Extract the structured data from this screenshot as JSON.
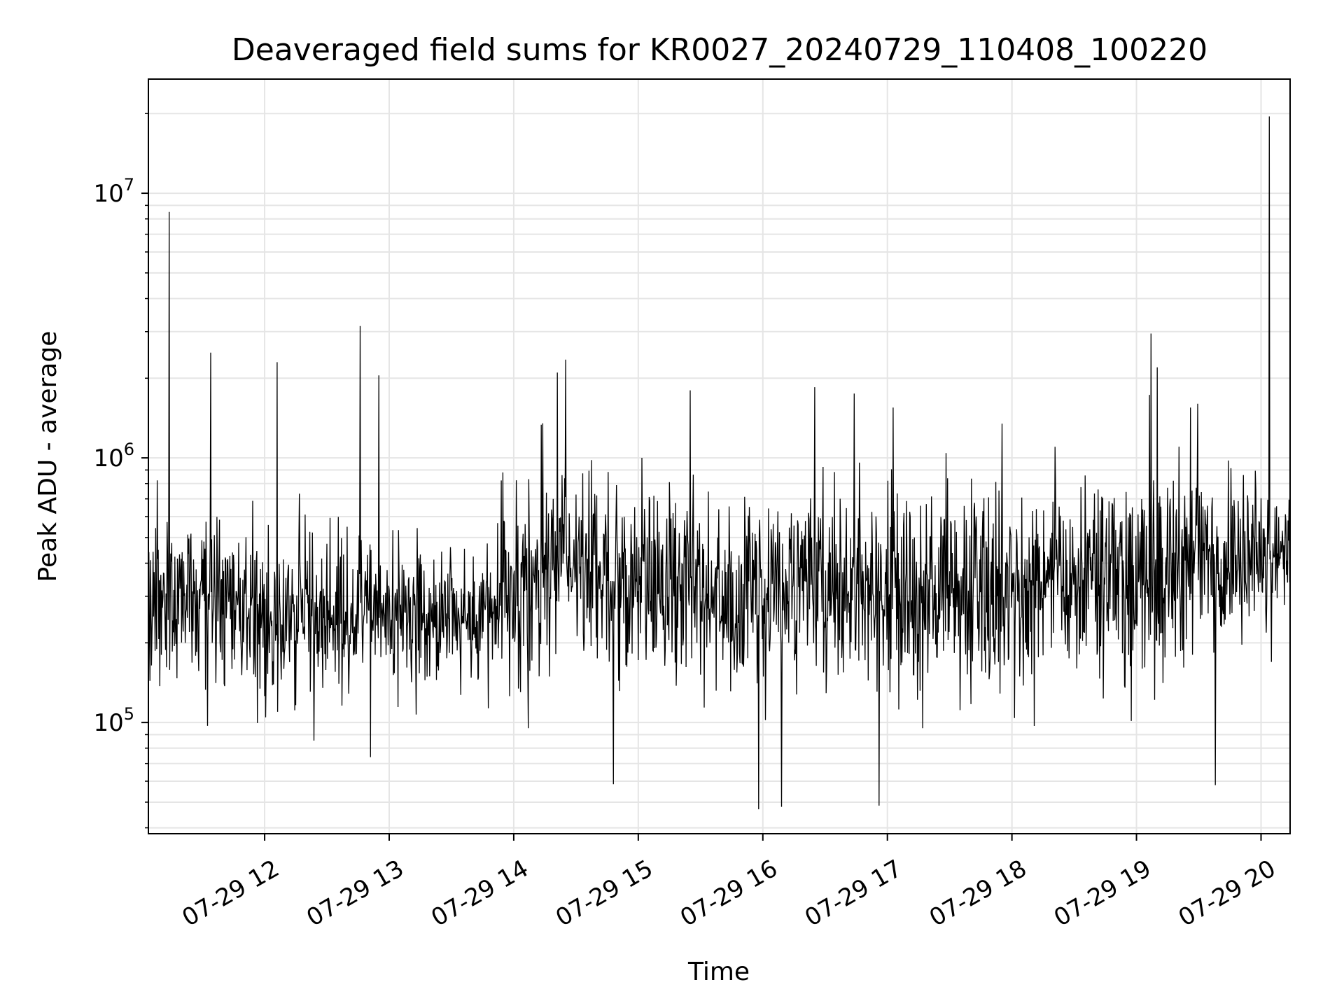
{
  "chart_data": {
    "type": "line",
    "title": "Deaveraged field sums for KR0027_20240729_110408_100220",
    "xlabel": "Time",
    "ylabel": "Peak ADU - average",
    "y_scale": "log",
    "ylim": [
      38000,
      27000000
    ],
    "xlim": [
      "07-29 11:04",
      "07-29 20:14"
    ],
    "x_ticks": [
      "07-29 12",
      "07-29 13",
      "07-29 14",
      "07-29 15",
      "07-29 16",
      "07-29 17",
      "07-29 18",
      "07-29 19",
      "07-29 20"
    ],
    "y_ticks": [
      {
        "base": "10",
        "exp": "5",
        "value": 100000
      },
      {
        "base": "10",
        "exp": "6",
        "value": 1000000
      },
      {
        "base": "10",
        "exp": "7",
        "value": 10000000
      }
    ],
    "grid": true,
    "line_color": "#000000",
    "grid_color": "#e5e5e5",
    "series": [
      {
        "values_note_free": true,
        "spikes": [
          {
            "x": "07-29 11:14",
            "y": 8500000
          },
          {
            "x": "07-29 11:34",
            "y": 2500000
          },
          {
            "x": "07-29 12:06",
            "y": 2300000
          },
          {
            "x": "07-29 12:46",
            "y": 3150000
          },
          {
            "x": "07-29 12:55",
            "y": 2050000
          },
          {
            "x": "07-29 14:21",
            "y": 2100000
          },
          {
            "x": "07-29 14:25",
            "y": 2350000
          },
          {
            "x": "07-29 15:25",
            "y": 1800000
          },
          {
            "x": "07-29 16:25",
            "y": 1850000
          },
          {
            "x": "07-29 16:44",
            "y": 1750000
          },
          {
            "x": "07-29 19:07",
            "y": 2950000
          },
          {
            "x": "07-29 19:10",
            "y": 2200000
          },
          {
            "x": "07-29 20:04",
            "y": 19500000
          }
        ],
        "dips": [
          {
            "x": "07-29 15:58",
            "y": 47000
          },
          {
            "x": "07-29 16:09",
            "y": 48000
          },
          {
            "x": "07-29 16:56",
            "y": 48500
          },
          {
            "x": "07-29 19:38",
            "y": 58000
          },
          {
            "x": "07-29 14:48",
            "y": 58500
          }
        ]
      }
    ]
  }
}
